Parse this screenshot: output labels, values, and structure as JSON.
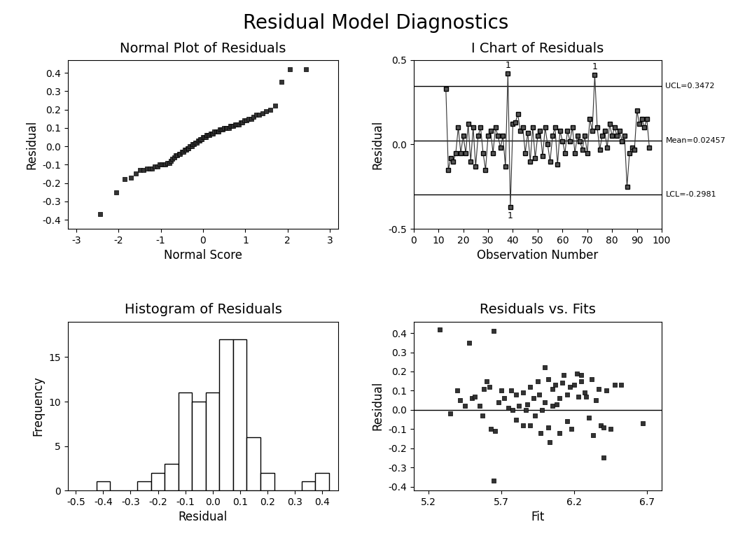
{
  "title": "Residual Model Diagnostics",
  "chart_data": [
    {
      "type": "scatter",
      "title": "Normal Plot of Residuals",
      "x_label": "Normal Score",
      "y_label": "Residual",
      "color": "#333333",
      "marker": "square",
      "x": [
        -2.43,
        -2.06,
        -1.86,
        -1.71,
        -1.59,
        -1.49,
        -1.41,
        -1.33,
        -1.26,
        -1.2,
        -1.14,
        -1.08,
        -1.03,
        -0.98,
        -0.93,
        -0.89,
        -0.84,
        -0.8,
        -0.76,
        -0.72,
        -0.68,
        -0.64,
        -0.61,
        -0.57,
        -0.54,
        -0.5,
        -0.47,
        -0.43,
        -0.4,
        -0.37,
        -0.34,
        -0.31,
        -0.27,
        -0.24,
        -0.21,
        -0.18,
        -0.15,
        -0.12,
        -0.09,
        -0.06,
        -0.03,
        0.0,
        0.03,
        0.06,
        0.09,
        0.12,
        0.15,
        0.18,
        0.21,
        0.24,
        0.27,
        0.31,
        0.34,
        0.37,
        0.4,
        0.43,
        0.47,
        0.5,
        0.54,
        0.57,
        0.61,
        0.64,
        0.68,
        0.72,
        0.76,
        0.8,
        0.84,
        0.89,
        0.93,
        0.98,
        1.03,
        1.08,
        1.14,
        1.2,
        1.26,
        1.33,
        1.41,
        1.49,
        1.59,
        1.71,
        1.86,
        2.06,
        2.43
      ],
      "values": [
        -0.37,
        -0.25,
        -0.18,
        -0.17,
        -0.15,
        -0.13,
        -0.13,
        -0.12,
        -0.12,
        -0.12,
        -0.11,
        -0.11,
        -0.1,
        -0.1,
        -0.1,
        -0.1,
        -0.09,
        -0.09,
        -0.08,
        -0.07,
        -0.06,
        -0.05,
        -0.05,
        -0.04,
        -0.04,
        -0.03,
        -0.03,
        -0.02,
        -0.02,
        -0.01,
        -0.01,
        0.0,
        0.0,
        0.01,
        0.01,
        0.02,
        0.02,
        0.03,
        0.03,
        0.04,
        0.04,
        0.05,
        0.05,
        0.05,
        0.06,
        0.06,
        0.06,
        0.07,
        0.07,
        0.07,
        0.08,
        0.08,
        0.08,
        0.08,
        0.09,
        0.09,
        0.09,
        0.1,
        0.1,
        0.1,
        0.1,
        0.11,
        0.11,
        0.11,
        0.12,
        0.12,
        0.12,
        0.13,
        0.13,
        0.14,
        0.14,
        0.15,
        0.15,
        0.16,
        0.17,
        0.17,
        0.18,
        0.19,
        0.2,
        0.22,
        0.35,
        0.42,
        0.42
      ],
      "xlim": [
        -3.2,
        3.2
      ],
      "xticks": [
        -3,
        -2,
        -1,
        0,
        1,
        2,
        3
      ],
      "ylim": [
        -0.45,
        0.47
      ],
      "yticks": [
        -0.4,
        -0.3,
        -0.2,
        -0.1,
        0.0,
        0.1,
        0.2,
        0.3,
        0.4
      ]
    },
    {
      "type": "line",
      "title": "I Chart of Residuals",
      "x_label": "Observation Number",
      "y_label": "Residual",
      "color": "#333333",
      "marker": "square",
      "x": [
        13,
        14,
        15,
        16,
        17,
        18,
        19,
        20,
        21,
        22,
        23,
        24,
        25,
        26,
        27,
        28,
        29,
        30,
        31,
        32,
        33,
        34,
        35,
        36,
        37,
        38,
        39,
        40,
        41,
        42,
        43,
        44,
        45,
        46,
        47,
        48,
        49,
        50,
        51,
        52,
        53,
        54,
        55,
        56,
        57,
        58,
        59,
        60,
        61,
        62,
        63,
        64,
        65,
        66,
        67,
        68,
        69,
        70,
        71,
        72,
        73,
        74,
        75,
        76,
        77,
        78,
        79,
        80,
        81,
        82,
        83,
        84,
        85,
        86,
        87,
        88,
        89,
        90,
        91,
        92,
        93,
        94,
        95
      ],
      "values": [
        0.33,
        -0.15,
        -0.08,
        -0.1,
        -0.05,
        0.1,
        -0.05,
        0.05,
        -0.05,
        0.12,
        -0.1,
        0.1,
        -0.13,
        0.05,
        0.1,
        -0.05,
        -0.15,
        0.05,
        0.08,
        -0.05,
        0.1,
        0.05,
        -0.02,
        0.05,
        -0.13,
        0.42,
        -0.37,
        0.12,
        0.13,
        0.18,
        0.08,
        0.1,
        -0.05,
        0.07,
        -0.1,
        0.1,
        -0.08,
        0.05,
        0.08,
        -0.07,
        0.1,
        0.0,
        -0.1,
        0.05,
        0.1,
        -0.12,
        0.08,
        0.02,
        -0.05,
        0.08,
        0.02,
        0.1,
        -0.05,
        0.05,
        0.02,
        -0.03,
        0.05,
        -0.05,
        0.15,
        0.08,
        0.41,
        0.1,
        -0.03,
        0.05,
        0.08,
        -0.02,
        0.12,
        0.05,
        0.1,
        0.05,
        0.08,
        0.02,
        0.05,
        -0.25,
        -0.05,
        -0.02,
        -0.03,
        0.2,
        0.12,
        0.15,
        0.1,
        0.15,
        -0.02
      ],
      "control_limits": [
        {
          "value": 0.3472,
          "label": "UCL=0.3472"
        },
        {
          "value": 0.02457,
          "label": "Mean=0.02457"
        },
        {
          "value": -0.2981,
          "label": "LCL=-0.2981"
        }
      ],
      "flags": [
        {
          "x": 38,
          "label": "1"
        },
        {
          "x": 39,
          "label": "1"
        },
        {
          "x": 73,
          "label": "1"
        }
      ],
      "xlim": [
        0,
        100
      ],
      "xticks": [
        0,
        10,
        20,
        30,
        40,
        50,
        60,
        70,
        80,
        90,
        100
      ],
      "ylim": [
        -0.5,
        0.5
      ],
      "yticks": [
        -0.5,
        0.0,
        0.5
      ]
    },
    {
      "type": "histogram",
      "title": "Histogram of Residuals",
      "x_label": "Residual",
      "y_label": "Frequency",
      "color": "#ffffff",
      "bins": [
        -0.425,
        -0.375,
        -0.325,
        -0.275,
        -0.225,
        -0.175,
        -0.125,
        -0.075,
        -0.025,
        0.025,
        0.075,
        0.125,
        0.175,
        0.225,
        0.275,
        0.325,
        0.375,
        0.425
      ],
      "counts": [
        1,
        0,
        0,
        1,
        2,
        3,
        11,
        10,
        11,
        17,
        17,
        6,
        2,
        0,
        0,
        1,
        2
      ],
      "xlim": [
        -0.53,
        0.46
      ],
      "xticks": [
        -0.5,
        -0.4,
        -0.3,
        -0.2,
        -0.1,
        0.0,
        0.1,
        0.2,
        0.3,
        0.4
      ],
      "ylim": [
        0,
        19
      ],
      "yticks": [
        0,
        5,
        10,
        15
      ]
    },
    {
      "type": "scatter",
      "title": "Residuals vs. Fits",
      "x_label": "Fit",
      "y_label": "Residual",
      "color": "#333333",
      "marker": "square",
      "reference_line": 0,
      "x": [
        5.28,
        5.35,
        5.4,
        5.42,
        5.45,
        5.48,
        5.5,
        5.52,
        5.55,
        5.57,
        5.58,
        5.6,
        5.62,
        5.63,
        5.65,
        5.65,
        5.66,
        5.68,
        5.7,
        5.72,
        5.75,
        5.77,
        5.78,
        5.8,
        5.8,
        5.82,
        5.85,
        5.85,
        5.87,
        5.88,
        5.9,
        5.9,
        5.92,
        5.93,
        5.95,
        5.96,
        5.97,
        5.98,
        6.0,
        6.0,
        6.02,
        6.02,
        6.03,
        6.05,
        6.05,
        6.07,
        6.08,
        6.1,
        6.1,
        6.12,
        6.13,
        6.15,
        6.15,
        6.17,
        6.18,
        6.2,
        6.22,
        6.23,
        6.25,
        6.25,
        6.27,
        6.28,
        6.3,
        6.32,
        6.33,
        6.35,
        6.37,
        6.38,
        6.4,
        6.4,
        6.42,
        6.45,
        6.48,
        6.52,
        6.67
      ],
      "values": [
        0.42,
        -0.02,
        0.1,
        0.05,
        0.02,
        0.35,
        0.06,
        0.07,
        0.02,
        -0.03,
        0.11,
        0.15,
        0.12,
        -0.1,
        0.41,
        -0.37,
        -0.11,
        0.04,
        0.1,
        0.06,
        0.01,
        0.1,
        0.0,
        0.08,
        -0.05,
        0.02,
        0.09,
        -0.08,
        0.0,
        0.03,
        -0.08,
        0.12,
        0.06,
        -0.03,
        0.15,
        0.08,
        -0.12,
        0.0,
        0.22,
        0.04,
        0.16,
        -0.09,
        -0.17,
        0.11,
        0.02,
        0.13,
        0.03,
        0.06,
        -0.12,
        0.14,
        0.18,
        0.08,
        -0.06,
        0.12,
        -0.1,
        0.13,
        0.19,
        0.07,
        0.18,
        0.15,
        0.09,
        0.07,
        -0.04,
        0.16,
        -0.13,
        0.05,
        0.11,
        -0.08,
        -0.09,
        -0.25,
        0.1,
        -0.1,
        0.13,
        0.13,
        -0.07
      ],
      "xlim": [
        5.1,
        6.8
      ],
      "xticks": [
        5.2,
        5.7,
        6.2,
        6.7
      ],
      "ylim": [
        -0.42,
        0.46
      ],
      "yticks": [
        -0.4,
        -0.3,
        -0.2,
        -0.1,
        0.0,
        0.1,
        0.2,
        0.3,
        0.4
      ]
    }
  ]
}
